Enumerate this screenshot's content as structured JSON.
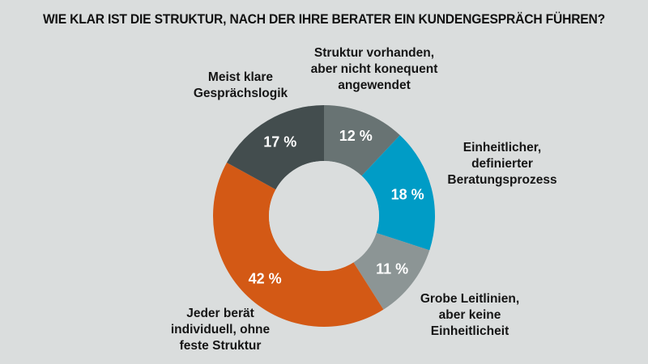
{
  "chart_data": {
    "type": "pie",
    "variant": "donut",
    "title": "WIE KLAR IST DIE STRUKTUR, NACH DER IHRE BERATER EIN KUNDENGESPRÄCH FÜHREN?",
    "unit": "%",
    "start": "top",
    "direction": "clockwise",
    "slices": [
      {
        "label": "Struktur vorhanden, aber nicht konequent angewendet",
        "lines": [
          "Struktur vorhanden,",
          "aber nicht konequent",
          "angewendet"
        ],
        "value": 12,
        "display": "12 %",
        "color": "#687373"
      },
      {
        "label": "Einheitlicher, definierter Beratungsprozess",
        "lines": [
          "Einheitlicher,",
          "definierter",
          "Beratungsprozess"
        ],
        "value": 18,
        "display": "18 %",
        "color": "#009cc6"
      },
      {
        "label": "Grobe Leitlinien, aber keine Einheitlicheit",
        "lines": [
          "Grobe Leitlinien,",
          "aber keine",
          "Einheitlicheit"
        ],
        "value": 11,
        "display": "11 %",
        "color": "#8c9595"
      },
      {
        "label": "Jeder berät individuell, ohne feste Struktur",
        "lines": [
          "Jeder berät",
          "individuell, ohne",
          "feste Struktur"
        ],
        "value": 42,
        "display": "42 %",
        "color": "#d35915"
      },
      {
        "label": "Meist klare Gesprächslogik",
        "lines": [
          "Meist klare",
          "Gesprächslogik"
        ],
        "value": 17,
        "display": "17 %",
        "color": "#434d4e"
      }
    ]
  }
}
